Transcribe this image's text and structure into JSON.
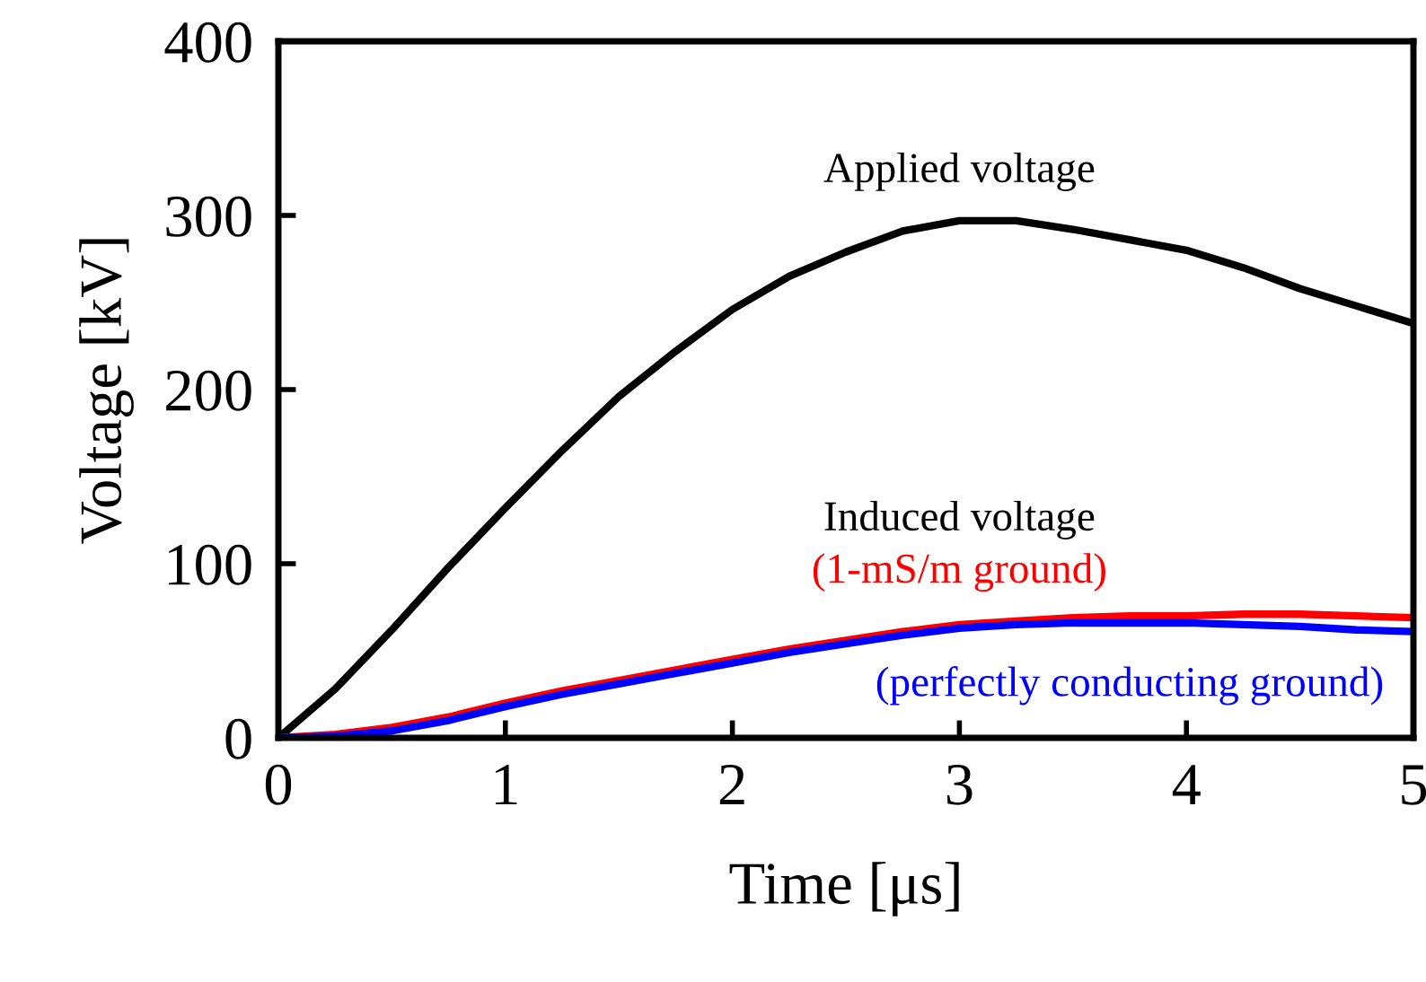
{
  "chart_data": {
    "type": "line",
    "xlabel": "Time [μs]",
    "ylabel": "Voltage [kV]",
    "x": [
      0,
      0.25,
      0.5,
      0.75,
      1,
      1.25,
      1.5,
      1.75,
      2,
      2.25,
      2.5,
      2.75,
      3,
      3.25,
      3.5,
      3.75,
      4,
      4.25,
      4.5,
      4.75,
      5
    ],
    "series": [
      {
        "name": "Applied voltage",
        "color": "#000000",
        "values": [
          0,
          28,
          62,
          98,
          132,
          165,
          196,
          222,
          246,
          265,
          279,
          291,
          297,
          297,
          292,
          286,
          280,
          270,
          258,
          248,
          238
        ]
      },
      {
        "name": "(1-mS/m ground)",
        "color": "#ff0000",
        "values": [
          0,
          2,
          6,
          12,
          20,
          27,
          33,
          39,
          45,
          51,
          56,
          61,
          65,
          67,
          69,
          70,
          70,
          71,
          71,
          70,
          69
        ]
      },
      {
        "name": "(perfectly conducting ground)",
        "color": "#0000ff",
        "values": [
          0,
          1,
          4,
          10,
          18,
          25,
          31,
          37,
          43,
          49,
          54,
          59,
          63,
          65,
          66,
          66,
          66,
          65,
          64,
          62,
          61
        ]
      }
    ],
    "annotations": [
      "Induced voltage"
    ],
    "xlim": [
      0,
      5
    ],
    "xticks": [
      0,
      1,
      2,
      3,
      4,
      5
    ],
    "ylim": [
      0,
      400
    ],
    "yticks": [
      0,
      100,
      200,
      300,
      400
    ],
    "grid": false,
    "legend": false,
    "marker": "none",
    "line_style": "solid"
  }
}
